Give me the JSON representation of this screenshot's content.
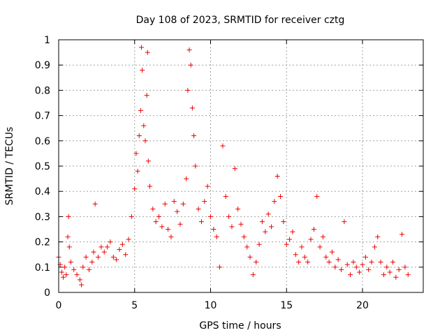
{
  "chart_data": {
    "type": "scatter",
    "title": "Day 108 of 2023, SRMTID for receiver cztg",
    "xlabel": "GPS time / hours",
    "ylabel": "SRMTID / TECUs",
    "xlim": [
      0,
      24
    ],
    "ylim": [
      0,
      1
    ],
    "xticks": [
      0,
      5,
      10,
      15,
      20
    ],
    "yticks": [
      0,
      0.1,
      0.2,
      0.3,
      0.4,
      0.5,
      0.6,
      0.7,
      0.8,
      0.9,
      1
    ],
    "grid": true,
    "marker": "plus",
    "series_color": "#ee0000",
    "data_extent": [
      0,
      23
    ],
    "series": [
      {
        "name": "SRMTID",
        "points": [
          [
            0.0,
            0.14
          ],
          [
            0.1,
            0.11
          ],
          [
            0.2,
            0.08
          ],
          [
            0.3,
            0.06
          ],
          [
            0.4,
            0.1
          ],
          [
            0.5,
            0.07
          ],
          [
            0.6,
            0.22
          ],
          [
            0.65,
            0.3
          ],
          [
            0.7,
            0.18
          ],
          [
            0.8,
            0.12
          ],
          [
            1.0,
            0.09
          ],
          [
            1.2,
            0.07
          ],
          [
            1.4,
            0.05
          ],
          [
            1.5,
            0.03
          ],
          [
            1.6,
            0.1
          ],
          [
            1.8,
            0.14
          ],
          [
            2.0,
            0.09
          ],
          [
            2.2,
            0.12
          ],
          [
            2.3,
            0.16
          ],
          [
            2.4,
            0.35
          ],
          [
            2.6,
            0.14
          ],
          [
            2.8,
            0.18
          ],
          [
            3.0,
            0.16
          ],
          [
            3.2,
            0.18
          ],
          [
            3.4,
            0.2
          ],
          [
            3.6,
            0.14
          ],
          [
            3.8,
            0.13
          ],
          [
            4.0,
            0.17
          ],
          [
            4.2,
            0.19
          ],
          [
            4.4,
            0.15
          ],
          [
            4.6,
            0.21
          ],
          [
            4.8,
            0.3
          ],
          [
            5.0,
            0.41
          ],
          [
            5.1,
            0.55
          ],
          [
            5.2,
            0.48
          ],
          [
            5.3,
            0.62
          ],
          [
            5.4,
            0.72
          ],
          [
            5.45,
            0.97
          ],
          [
            5.5,
            0.88
          ],
          [
            5.6,
            0.66
          ],
          [
            5.7,
            0.6
          ],
          [
            5.8,
            0.78
          ],
          [
            5.85,
            0.95
          ],
          [
            5.9,
            0.52
          ],
          [
            6.0,
            0.42
          ],
          [
            6.2,
            0.33
          ],
          [
            6.4,
            0.28
          ],
          [
            6.6,
            0.3
          ],
          [
            6.8,
            0.26
          ],
          [
            7.0,
            0.35
          ],
          [
            7.2,
            0.25
          ],
          [
            7.4,
            0.22
          ],
          [
            7.6,
            0.36
          ],
          [
            7.8,
            0.32
          ],
          [
            8.0,
            0.27
          ],
          [
            8.2,
            0.35
          ],
          [
            8.4,
            0.45
          ],
          [
            8.5,
            0.8
          ],
          [
            8.6,
            0.96
          ],
          [
            8.7,
            0.9
          ],
          [
            8.8,
            0.73
          ],
          [
            8.9,
            0.62
          ],
          [
            9.0,
            0.5
          ],
          [
            9.2,
            0.33
          ],
          [
            9.4,
            0.28
          ],
          [
            9.6,
            0.36
          ],
          [
            9.8,
            0.42
          ],
          [
            10.0,
            0.3
          ],
          [
            10.2,
            0.25
          ],
          [
            10.4,
            0.22
          ],
          [
            10.6,
            0.1
          ],
          [
            10.8,
            0.58
          ],
          [
            11.0,
            0.38
          ],
          [
            11.2,
            0.3
          ],
          [
            11.4,
            0.26
          ],
          [
            11.6,
            0.49
          ],
          [
            11.8,
            0.33
          ],
          [
            12.0,
            0.27
          ],
          [
            12.2,
            0.22
          ],
          [
            12.4,
            0.18
          ],
          [
            12.6,
            0.14
          ],
          [
            12.8,
            0.07
          ],
          [
            13.0,
            0.12
          ],
          [
            13.2,
            0.19
          ],
          [
            13.4,
            0.28
          ],
          [
            13.6,
            0.24
          ],
          [
            13.8,
            0.31
          ],
          [
            14.0,
            0.26
          ],
          [
            14.2,
            0.36
          ],
          [
            14.4,
            0.46
          ],
          [
            14.6,
            0.38
          ],
          [
            14.8,
            0.28
          ],
          [
            15.0,
            0.19
          ],
          [
            15.2,
            0.21
          ],
          [
            15.4,
            0.24
          ],
          [
            15.6,
            0.15
          ],
          [
            15.8,
            0.12
          ],
          [
            16.0,
            0.18
          ],
          [
            16.2,
            0.14
          ],
          [
            16.4,
            0.12
          ],
          [
            16.6,
            0.21
          ],
          [
            16.8,
            0.25
          ],
          [
            17.0,
            0.38
          ],
          [
            17.2,
            0.18
          ],
          [
            17.4,
            0.22
          ],
          [
            17.6,
            0.14
          ],
          [
            17.8,
            0.12
          ],
          [
            18.0,
            0.16
          ],
          [
            18.2,
            0.1
          ],
          [
            18.4,
            0.13
          ],
          [
            18.6,
            0.09
          ],
          [
            18.8,
            0.28
          ],
          [
            19.0,
            0.11
          ],
          [
            19.2,
            0.07
          ],
          [
            19.4,
            0.12
          ],
          [
            19.6,
            0.1
          ],
          [
            19.8,
            0.08
          ],
          [
            20.0,
            0.11
          ],
          [
            20.2,
            0.14
          ],
          [
            20.4,
            0.09
          ],
          [
            20.6,
            0.12
          ],
          [
            20.8,
            0.18
          ],
          [
            21.0,
            0.22
          ],
          [
            21.2,
            0.12
          ],
          [
            21.4,
            0.07
          ],
          [
            21.6,
            0.1
          ],
          [
            21.8,
            0.08
          ],
          [
            22.0,
            0.12
          ],
          [
            22.2,
            0.06
          ],
          [
            22.4,
            0.09
          ],
          [
            22.6,
            0.23
          ],
          [
            22.8,
            0.1
          ],
          [
            23.0,
            0.07
          ]
        ]
      }
    ]
  }
}
